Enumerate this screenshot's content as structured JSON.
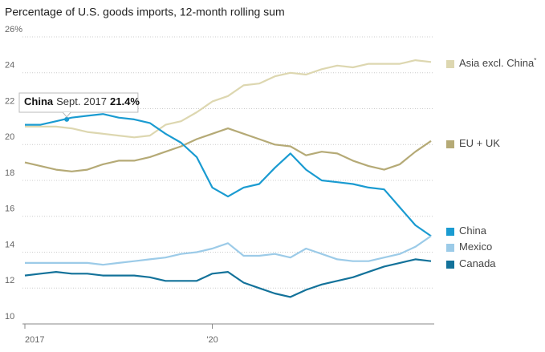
{
  "chart_data": {
    "type": "line",
    "title": "Percentage of U.S. goods imports, 12-month rolling sum",
    "x": [
      2017.0,
      2017.25,
      2017.5,
      2017.75,
      2018.0,
      2018.25,
      2018.5,
      2018.75,
      2019.0,
      2019.25,
      2019.5,
      2019.75,
      2020.0,
      2020.25,
      2020.5,
      2020.75,
      2021.0,
      2021.25,
      2021.5,
      2021.75,
      2022.0,
      2022.25,
      2022.5,
      2022.75,
      2023.0,
      2023.25,
      2023.5
    ],
    "series": [
      {
        "name": "Asia excl. China",
        "note": "*",
        "color": "#ddd7b0",
        "values": [
          21.0,
          21.0,
          21.0,
          20.9,
          20.7,
          20.6,
          20.5,
          20.4,
          20.5,
          21.1,
          21.3,
          21.8,
          22.4,
          22.7,
          23.3,
          23.4,
          23.8,
          24.0,
          23.9,
          24.2,
          24.4,
          24.3,
          24.5,
          24.5,
          24.5,
          24.7,
          24.6
        ]
      },
      {
        "name": "EU + UK",
        "color": "#b5aa76",
        "values": [
          19.0,
          18.8,
          18.6,
          18.5,
          18.6,
          18.9,
          19.1,
          19.1,
          19.3,
          19.6,
          19.9,
          20.3,
          20.6,
          20.9,
          20.6,
          20.3,
          20.0,
          19.9,
          19.4,
          19.6,
          19.5,
          19.1,
          18.8,
          18.6,
          18.9,
          19.6,
          20.2
        ]
      },
      {
        "name": "China",
        "color": "#1a9bd1",
        "values": [
          21.1,
          21.1,
          21.3,
          21.5,
          21.6,
          21.7,
          21.5,
          21.4,
          21.2,
          20.6,
          20.1,
          19.3,
          17.6,
          17.1,
          17.6,
          17.8,
          18.7,
          19.5,
          18.6,
          18.0,
          17.9,
          17.8,
          17.6,
          17.5,
          16.5,
          15.5,
          14.9
        ]
      },
      {
        "name": "Mexico",
        "color": "#9ccbe8",
        "values": [
          13.4,
          13.4,
          13.4,
          13.4,
          13.4,
          13.3,
          13.4,
          13.5,
          13.6,
          13.7,
          13.9,
          14.0,
          14.2,
          14.5,
          13.8,
          13.8,
          13.9,
          13.7,
          14.2,
          13.9,
          13.6,
          13.5,
          13.5,
          13.7,
          13.9,
          14.3,
          14.9
        ]
      },
      {
        "name": "Canada",
        "color": "#13729a",
        "values": [
          12.7,
          12.8,
          12.9,
          12.8,
          12.8,
          12.7,
          12.7,
          12.7,
          12.6,
          12.4,
          12.4,
          12.4,
          12.8,
          12.9,
          12.3,
          12.0,
          11.7,
          11.5,
          11.9,
          12.2,
          12.4,
          12.6,
          12.9,
          13.2,
          13.4,
          13.6,
          13.5
        ]
      }
    ],
    "xlim": [
      2017.0,
      2023.5
    ],
    "xticks": [
      2017,
      {
        "value": 2020,
        "label": "'20"
      }
    ],
    "ylim": [
      10,
      26
    ],
    "yticks": [
      10,
      12,
      14,
      16,
      18,
      20,
      22,
      24,
      {
        "value": 26,
        "label": "26%"
      }
    ],
    "grid": true,
    "annotation": {
      "series": "China",
      "date": "Sept. 2017",
      "x": 2017.67,
      "value": 21.4,
      "value_label": "21.4%"
    }
  }
}
